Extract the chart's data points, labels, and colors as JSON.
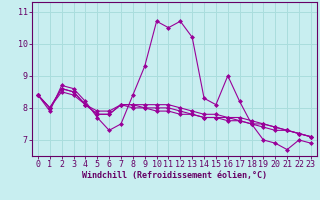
{
  "title": "",
  "xlabel": "Windchill (Refroidissement éolien,°C)",
  "ylabel": "",
  "background_color": "#c8eef0",
  "line_color": "#990099",
  "grid_color": "#aadddd",
  "axis_spine_color": "#660066",
  "xlim": [
    -0.5,
    23.5
  ],
  "ylim": [
    6.5,
    11.3
  ],
  "yticks": [
    7,
    8,
    9,
    10,
    11
  ],
  "xticks": [
    0,
    1,
    2,
    3,
    4,
    5,
    6,
    7,
    8,
    9,
    10,
    11,
    12,
    13,
    14,
    15,
    16,
    17,
    18,
    19,
    20,
    21,
    22,
    23
  ],
  "series": [
    [
      8.4,
      7.9,
      8.7,
      8.6,
      8.2,
      7.7,
      7.3,
      7.5,
      8.4,
      9.3,
      10.7,
      10.5,
      10.7,
      10.2,
      8.3,
      8.1,
      9.0,
      8.2,
      7.5,
      7.0,
      6.9,
      6.7,
      7.0,
      6.9
    ],
    [
      8.4,
      8.0,
      8.6,
      8.5,
      8.1,
      7.8,
      7.8,
      8.1,
      8.1,
      8.1,
      8.1,
      8.1,
      8.0,
      7.9,
      7.8,
      7.8,
      7.7,
      7.7,
      7.6,
      7.5,
      7.4,
      7.3,
      7.2,
      7.1
    ],
    [
      8.4,
      8.0,
      8.5,
      8.4,
      8.1,
      7.9,
      7.9,
      8.1,
      8.1,
      8.0,
      7.9,
      7.9,
      7.8,
      7.8,
      7.7,
      7.7,
      7.6,
      7.6,
      7.5,
      7.4,
      7.3,
      7.3,
      7.2,
      7.1
    ],
    [
      8.4,
      8.0,
      8.6,
      8.5,
      8.1,
      7.8,
      7.8,
      8.1,
      8.0,
      8.0,
      8.0,
      8.0,
      7.9,
      7.8,
      7.7,
      7.7,
      7.7,
      7.6,
      7.5,
      7.5,
      7.4,
      7.3,
      7.2,
      7.1
    ]
  ],
  "marker": "D",
  "markersize": 2.0,
  "linewidth": 0.8,
  "xlabel_fontsize": 6.0,
  "tick_fontsize": 6.0,
  "label_color": "#660066"
}
